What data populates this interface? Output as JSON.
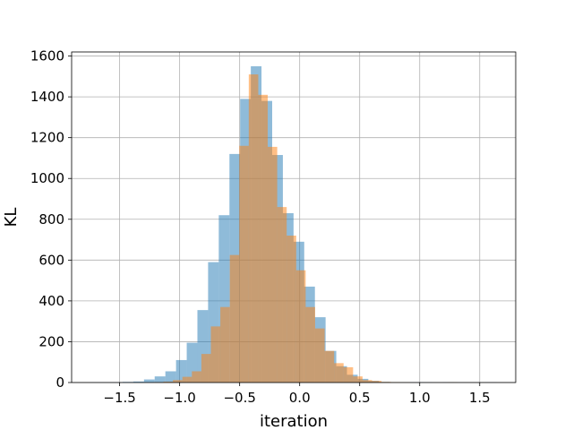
{
  "chart_data": {
    "type": "histogram",
    "title": "",
    "xlabel": "iteration",
    "ylabel": "KL",
    "xlim": [
      -1.9,
      1.8
    ],
    "ylim": [
      0,
      1620
    ],
    "x_ticks": [
      -1.5,
      -1.0,
      -0.5,
      0.0,
      0.5,
      1.0,
      1.5
    ],
    "x_tick_labels": [
      "−1.5",
      "−1.0",
      "−0.5",
      "0.0",
      "0.5",
      "1.0",
      "1.5"
    ],
    "y_ticks": [
      0,
      200,
      400,
      600,
      800,
      1000,
      1200,
      1400,
      1600
    ],
    "y_tick_labels": [
      "0",
      "200",
      "400",
      "600",
      "800",
      "1000",
      "1200",
      "1400",
      "1600"
    ],
    "grid": true,
    "legend": "none",
    "series": [
      {
        "color": "#1f77b4",
        "alpha": 0.5,
        "bin_edges": [
          -1.742,
          -1.653,
          -1.564,
          -1.475,
          -1.386,
          -1.297,
          -1.208,
          -1.119,
          -1.03,
          -0.941,
          -0.852,
          -0.763,
          -0.674,
          -0.585,
          -0.496,
          -0.407,
          -0.318,
          -0.229,
          -0.14,
          -0.051,
          0.038,
          0.127,
          0.216,
          0.305,
          0.394,
          0.483,
          0.572,
          0.661,
          0.75,
          0.839,
          0.928,
          1.017,
          1.106,
          1.195,
          1.284,
          1.373,
          1.462,
          1.551,
          1.64
        ],
        "counts": [
          1,
          1,
          1,
          3,
          5,
          15,
          30,
          55,
          110,
          195,
          355,
          590,
          820,
          1120,
          1390,
          1550,
          1380,
          1115,
          830,
          690,
          470,
          320,
          155,
          80,
          38,
          18,
          8,
          3,
          2,
          1,
          1,
          1,
          0,
          1,
          0,
          0,
          0,
          1
        ]
      },
      {
        "color": "#ff7f0e",
        "alpha": 0.5,
        "bin_edges": [
          -1.214,
          -1.135,
          -1.056,
          -0.977,
          -0.898,
          -0.819,
          -0.74,
          -0.661,
          -0.582,
          -0.503,
          -0.424,
          -0.345,
          -0.266,
          -0.187,
          -0.108,
          -0.029,
          0.05,
          0.129,
          0.208,
          0.287,
          0.366,
          0.445,
          0.524,
          0.603,
          0.682,
          0.761,
          0.84,
          0.919,
          0.998,
          1.077,
          1.156,
          1.235,
          1.314
        ],
        "counts": [
          2,
          4,
          12,
          28,
          55,
          140,
          275,
          370,
          625,
          1160,
          1510,
          1410,
          1155,
          860,
          720,
          550,
          370,
          265,
          155,
          95,
          75,
          30,
          12,
          8,
          3,
          2,
          1,
          0,
          0,
          0,
          0,
          1
        ]
      }
    ]
  }
}
